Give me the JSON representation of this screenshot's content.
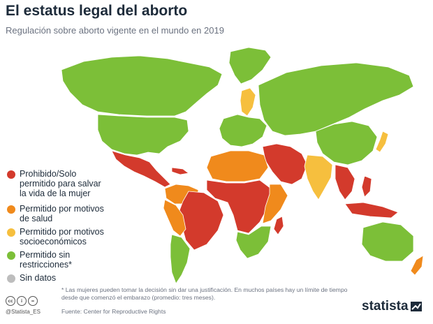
{
  "header": {
    "title": "El estatus legal del aborto",
    "subtitle": "Regulación sobre aborto vigente en el mundo en 2019"
  },
  "colors": {
    "prohibited": "#d33a2c",
    "health": "#f08a1c",
    "socioeconomic": "#f6bf3e",
    "unrestricted": "#7cbf38",
    "nodata": "#bdbdbd"
  },
  "legend": {
    "items": [
      {
        "label": "Prohibido/Solo\npermitido para salvar\nla vida de la mujer",
        "color": "#d33a2c"
      },
      {
        "label": "Permitido por motivos\nde salud",
        "color": "#f08a1c"
      },
      {
        "label": "Permitido por motivos\nsocioeconómicos",
        "color": "#f6bf3e"
      },
      {
        "label": "Permitido sin\nrestricciones*",
        "color": "#7cbf38"
      },
      {
        "label": "Sin datos",
        "color": "#bdbdbd"
      }
    ]
  },
  "footer": {
    "footnote": "* Las mujeres pueden tomar la decisión sin dar una justificación. En muchos países hay un límite de tiempo desde que comenzó el embarazo (promedio: tres meses).",
    "source": "Fuente: Center for Reproductive Rights",
    "handle": "@Statista_ES",
    "brand": "statista"
  },
  "map": {
    "regions": [
      {
        "name": "canada-alaska",
        "status": "unrestricted"
      },
      {
        "name": "usa",
        "status": "unrestricted"
      },
      {
        "name": "mexico-central-america",
        "status": "prohibited"
      },
      {
        "name": "colombia-venezuela",
        "status": "health"
      },
      {
        "name": "brazil",
        "status": "prohibited"
      },
      {
        "name": "peru-bolivia",
        "status": "health"
      },
      {
        "name": "argentina-chile",
        "status": "unrestricted"
      },
      {
        "name": "greenland",
        "status": "unrestricted"
      },
      {
        "name": "scandinavia",
        "status": "socioeconomic"
      },
      {
        "name": "europe",
        "status": "unrestricted"
      },
      {
        "name": "russia-central-asia",
        "status": "unrestricted"
      },
      {
        "name": "china-mongolia",
        "status": "unrestricted"
      },
      {
        "name": "japan",
        "status": "socioeconomic"
      },
      {
        "name": "india",
        "status": "socioeconomic"
      },
      {
        "name": "middle-east",
        "status": "prohibited"
      },
      {
        "name": "north-africa",
        "status": "health"
      },
      {
        "name": "west-central-africa",
        "status": "prohibited"
      },
      {
        "name": "east-africa",
        "status": "health"
      },
      {
        "name": "southern-africa",
        "status": "unrestricted"
      },
      {
        "name": "madagascar",
        "status": "prohibited"
      },
      {
        "name": "southeast-asia",
        "status": "prohibited"
      },
      {
        "name": "indonesia",
        "status": "prohibited"
      },
      {
        "name": "australia",
        "status": "unrestricted"
      },
      {
        "name": "new-zealand",
        "status": "health"
      }
    ]
  }
}
